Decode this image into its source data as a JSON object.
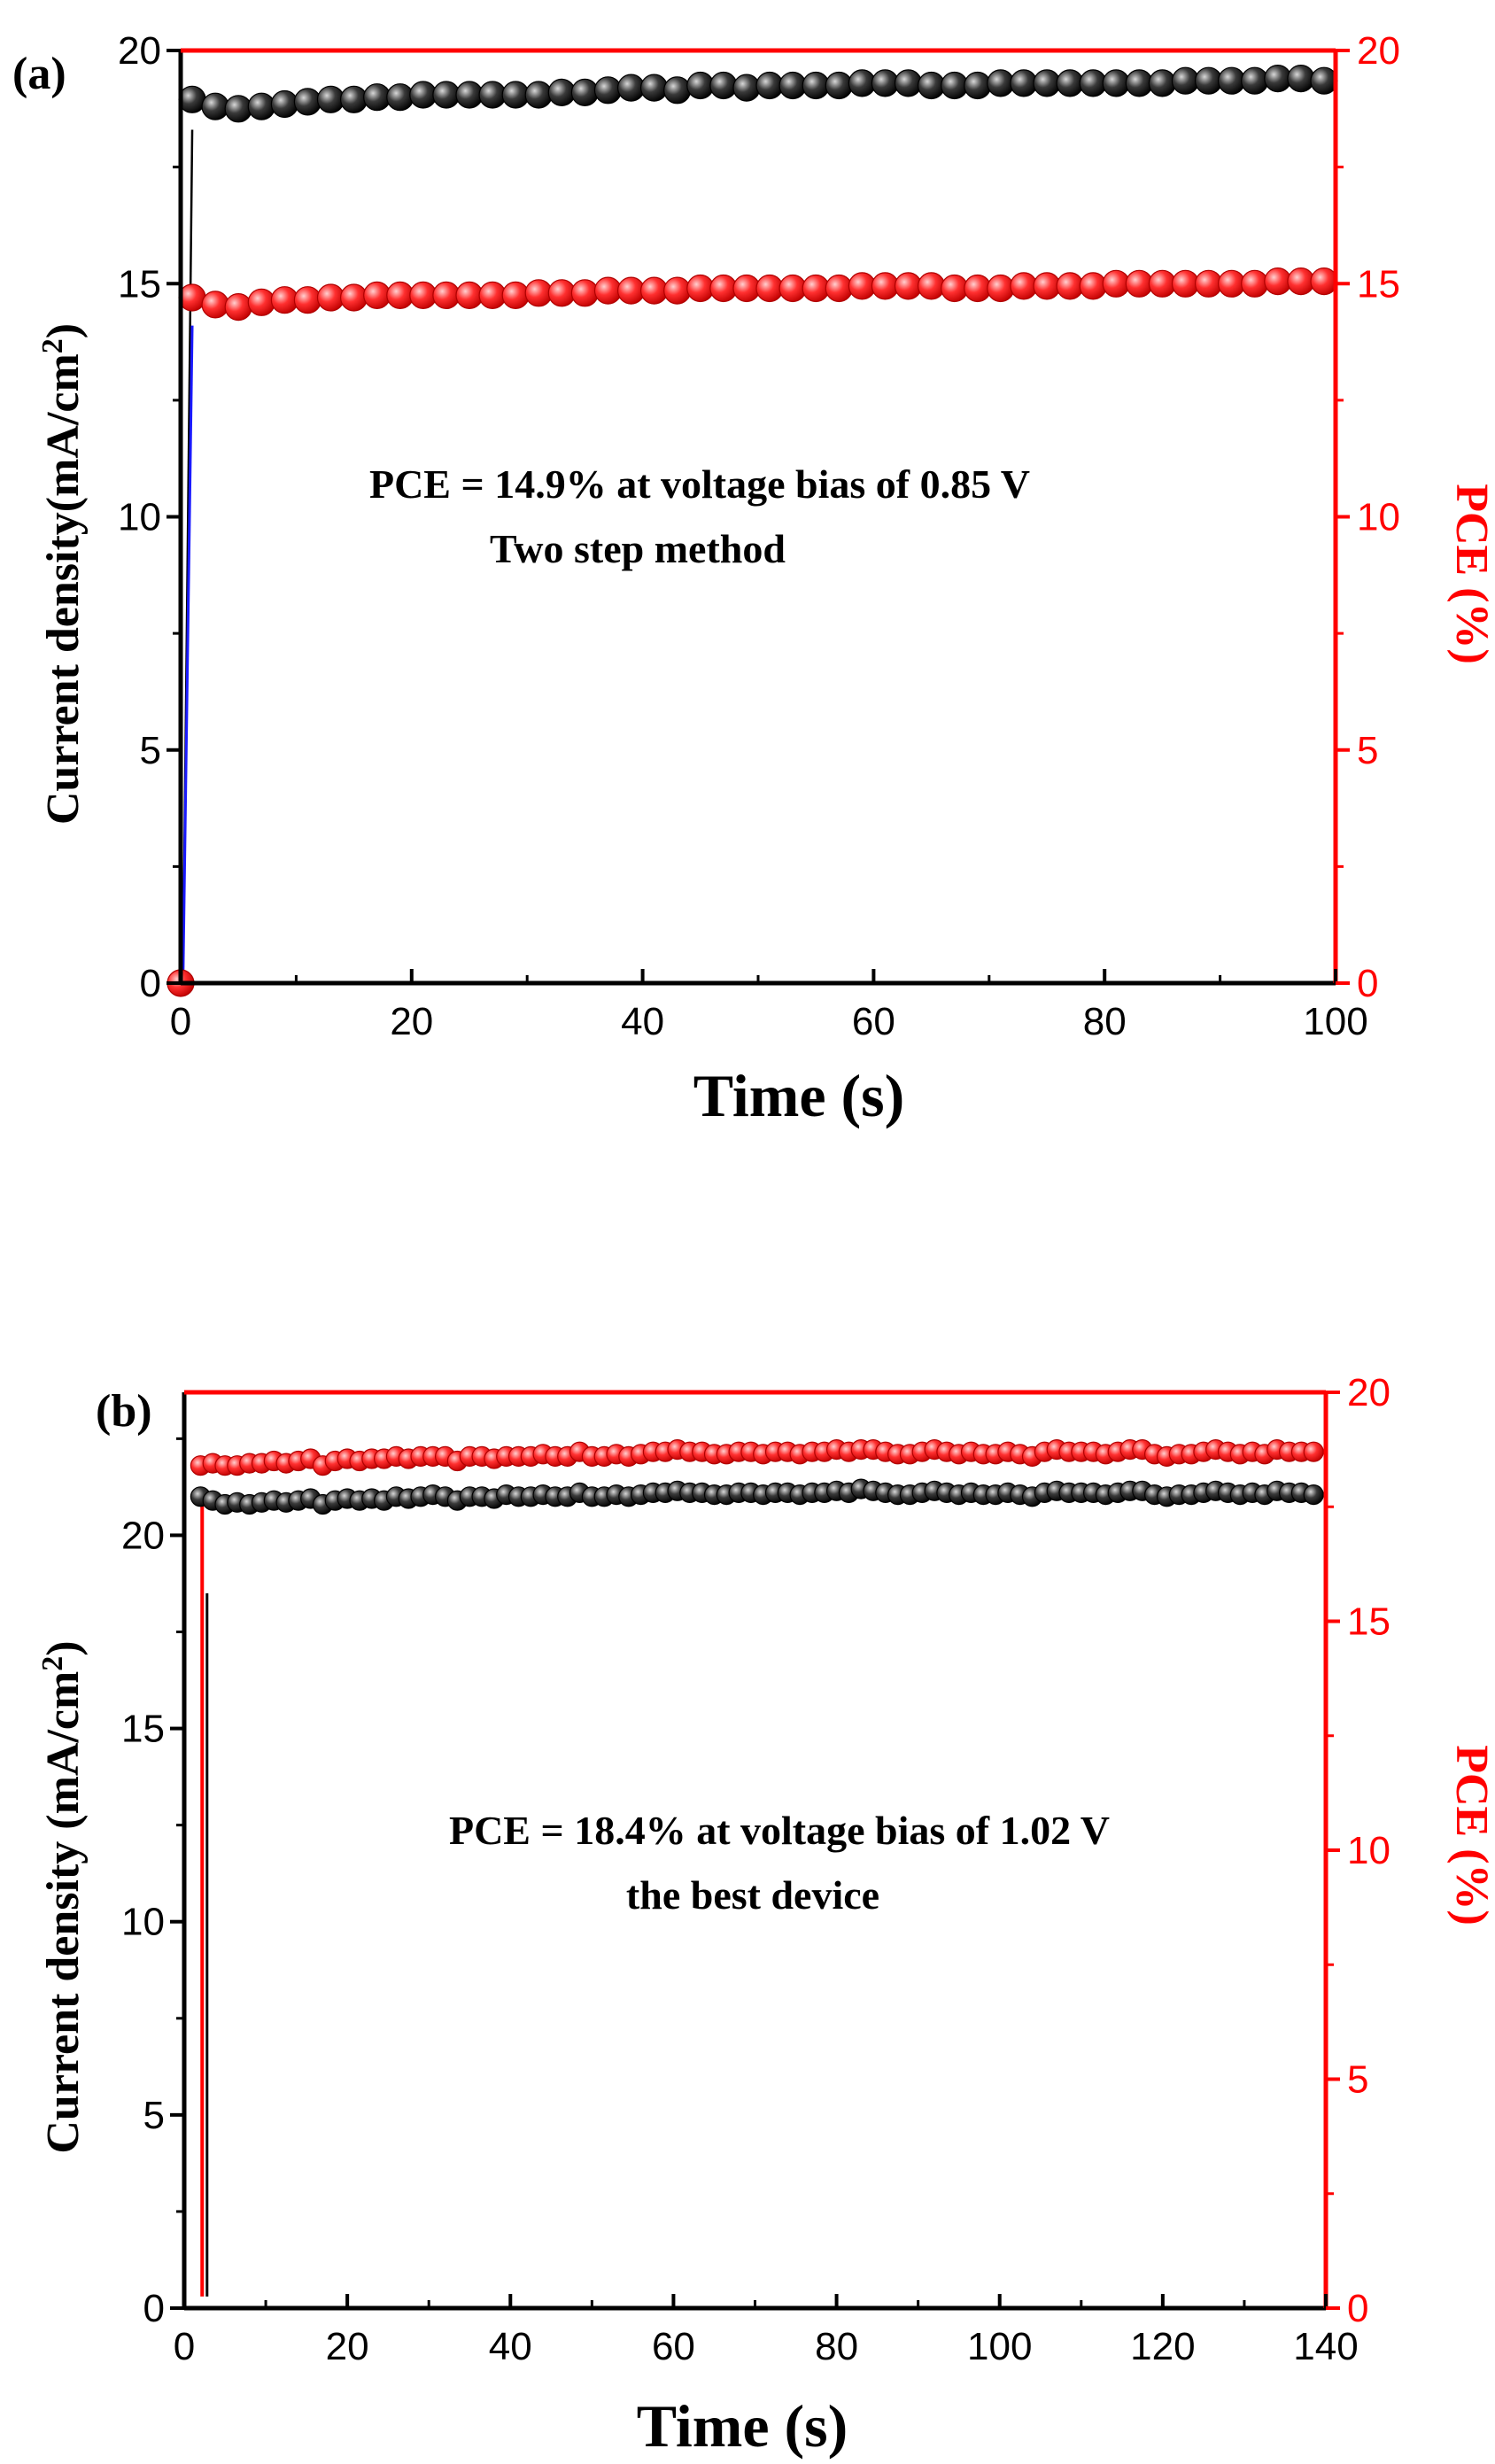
{
  "colors": {
    "current": "#000000",
    "pce": "#ff0000",
    "rise_a": "#1a1aff",
    "marker_black_fill": "#202020",
    "marker_red_fill": "#ff4040"
  },
  "chart_data": [
    {
      "type": "scatter",
      "panel_label": "(a)",
      "xlabel": "Time (s)",
      "ylabel_left": "Current density(mA/cm",
      "ylabel_left_sup": "2",
      "ylabel_left_end": ")",
      "ylabel_right": "PCE (%)",
      "xlim": [
        0,
        100
      ],
      "ylim_left": [
        0,
        20
      ],
      "ylim_right": [
        0,
        20
      ],
      "xticks": [
        "0",
        "20",
        "40",
        "60",
        "80",
        "100"
      ],
      "yticks_left": [
        "0",
        "5",
        "10",
        "15",
        "20"
      ],
      "yticks_right": [
        "0",
        "5",
        "10",
        "15",
        "20"
      ],
      "annotations": [
        "PCE = 14.9% at voltage bias of 0.85 V",
        "Two step method"
      ],
      "series": [
        {
          "axis": "left",
          "color": "#000000",
          "x": [
            1,
            3,
            5,
            7,
            9,
            11,
            13,
            15,
            17,
            19,
            21,
            23,
            25,
            27,
            29,
            31,
            33,
            35,
            37,
            39,
            41,
            43,
            45,
            47,
            49,
            51,
            53,
            55,
            57,
            59,
            61,
            63,
            65,
            67,
            69,
            71,
            73,
            75,
            77,
            79,
            81,
            83,
            85,
            87,
            89,
            91,
            93,
            95,
            97,
            99
          ],
          "y": [
            18.95,
            18.8,
            18.75,
            18.8,
            18.85,
            18.9,
            18.95,
            18.95,
            19.0,
            19.0,
            19.05,
            19.05,
            19.05,
            19.05,
            19.05,
            19.05,
            19.1,
            19.1,
            19.15,
            19.2,
            19.2,
            19.15,
            19.25,
            19.25,
            19.2,
            19.25,
            19.25,
            19.25,
            19.25,
            19.3,
            19.3,
            19.3,
            19.25,
            19.25,
            19.25,
            19.3,
            19.3,
            19.3,
            19.3,
            19.3,
            19.3,
            19.3,
            19.3,
            19.35,
            19.35,
            19.35,
            19.35,
            19.4,
            19.4,
            19.35
          ]
        },
        {
          "axis": "right",
          "color": "#ff0000",
          "x": [
            0,
            1,
            3,
            5,
            7,
            9,
            11,
            13,
            15,
            17,
            19,
            21,
            23,
            25,
            27,
            29,
            31,
            33,
            35,
            37,
            39,
            41,
            43,
            45,
            47,
            49,
            51,
            53,
            55,
            57,
            59,
            61,
            63,
            65,
            67,
            69,
            71,
            73,
            75,
            77,
            79,
            81,
            83,
            85,
            87,
            89,
            91,
            93,
            95,
            97,
            99
          ],
          "y": [
            0,
            14.7,
            14.55,
            14.5,
            14.6,
            14.65,
            14.65,
            14.7,
            14.7,
            14.75,
            14.75,
            14.75,
            14.75,
            14.75,
            14.75,
            14.75,
            14.8,
            14.8,
            14.8,
            14.85,
            14.85,
            14.85,
            14.85,
            14.9,
            14.9,
            14.9,
            14.9,
            14.9,
            14.9,
            14.9,
            14.95,
            14.95,
            14.95,
            14.95,
            14.9,
            14.9,
            14.9,
            14.95,
            14.95,
            14.95,
            14.95,
            15.0,
            15.0,
            15.0,
            15.0,
            15.0,
            15.0,
            15.0,
            15.05,
            15.05,
            15.05
          ]
        }
      ]
    },
    {
      "type": "scatter",
      "panel_label": "(b)",
      "xlabel": "Time (s)",
      "ylabel_left": "Current density (mA/cm",
      "ylabel_left_sup": "2",
      "ylabel_left_end": ")",
      "ylabel_right": "PCE (%)",
      "xlim": [
        0,
        140
      ],
      "ylim_left": [
        0,
        23.7
      ],
      "ylim_right": [
        0,
        20
      ],
      "xticks": [
        "0",
        "20",
        "40",
        "60",
        "80",
        "100",
        "120",
        "140"
      ],
      "yticks_left": [
        "0",
        "5",
        "10",
        "15",
        "20"
      ],
      "yticks_right": [
        "0",
        "5",
        "10",
        "15",
        "20"
      ],
      "annotations": [
        "PCE = 18.4% at voltage bias of 1.02 V",
        "the best device"
      ],
      "series": [
        {
          "axis": "left",
          "color": "#000000",
          "x": [
            2,
            3.5,
            5,
            6.5,
            8,
            9.5,
            11,
            12.5,
            14,
            15.5,
            17,
            18.5,
            20,
            21.5,
            23,
            24.5,
            26,
            27.5,
            29,
            30.5,
            32,
            33.5,
            35,
            36.5,
            38,
            39.5,
            41,
            42.5,
            44,
            45.5,
            47,
            48.5,
            50,
            51.5,
            53,
            54.5,
            56,
            57.5,
            59,
            60.5,
            62,
            63.5,
            65,
            66.5,
            68,
            69.5,
            71,
            72.5,
            74,
            75.5,
            77,
            78.5,
            80,
            81.5,
            83,
            84.5,
            86,
            87.5,
            89,
            90.5,
            92,
            93.5,
            95,
            96.5,
            98,
            99.5,
            101,
            102.5,
            104,
            105.5,
            107,
            108.5,
            110,
            111.5,
            113,
            114.5,
            116,
            117.5,
            119,
            120.5,
            122,
            123.5,
            125,
            126.5,
            128,
            129.5,
            131,
            132.5,
            134,
            135.5,
            137,
            138.5
          ],
          "y": [
            21.0,
            20.9,
            20.8,
            20.85,
            20.8,
            20.85,
            20.9,
            20.85,
            20.9,
            20.95,
            20.8,
            20.9,
            20.95,
            20.9,
            20.95,
            20.9,
            21.0,
            20.95,
            21.0,
            21.05,
            21.0,
            20.9,
            21.0,
            21.0,
            20.95,
            21.05,
            21.0,
            21.0,
            21.05,
            21.0,
            21.0,
            21.1,
            21.0,
            21.0,
            21.05,
            21.0,
            21.05,
            21.1,
            21.1,
            21.15,
            21.1,
            21.1,
            21.05,
            21.05,
            21.1,
            21.1,
            21.05,
            21.1,
            21.1,
            21.05,
            21.1,
            21.1,
            21.15,
            21.1,
            21.2,
            21.15,
            21.1,
            21.05,
            21.05,
            21.1,
            21.15,
            21.1,
            21.05,
            21.1,
            21.05,
            21.05,
            21.1,
            21.05,
            21.0,
            21.1,
            21.15,
            21.1,
            21.1,
            21.1,
            21.05,
            21.1,
            21.15,
            21.15,
            21.05,
            21.0,
            21.05,
            21.05,
            21.1,
            21.15,
            21.1,
            21.05,
            21.1,
            21.05,
            21.15,
            21.1,
            21.1,
            21.05
          ]
        },
        {
          "axis": "right",
          "color": "#ff0000",
          "x": [
            2,
            3.5,
            5,
            6.5,
            8,
            9.5,
            11,
            12.5,
            14,
            15.5,
            17,
            18.5,
            20,
            21.5,
            23,
            24.5,
            26,
            27.5,
            29,
            30.5,
            32,
            33.5,
            35,
            36.5,
            38,
            39.5,
            41,
            42.5,
            44,
            45.5,
            47,
            48.5,
            50,
            51.5,
            53,
            54.5,
            56,
            57.5,
            59,
            60.5,
            62,
            63.5,
            65,
            66.5,
            68,
            69.5,
            71,
            72.5,
            74,
            75.5,
            77,
            78.5,
            80,
            81.5,
            83,
            84.5,
            86,
            87.5,
            89,
            90.5,
            92,
            93.5,
            95,
            96.5,
            98,
            99.5,
            101,
            102.5,
            104,
            105.5,
            107,
            108.5,
            110,
            111.5,
            113,
            114.5,
            116,
            117.5,
            119,
            120.5,
            122,
            123.5,
            125,
            126.5,
            128,
            129.5,
            131,
            132.5,
            134,
            135.5,
            137,
            138.5
          ],
          "y": [
            18.4,
            18.45,
            18.4,
            18.4,
            18.45,
            18.45,
            18.5,
            18.45,
            18.5,
            18.55,
            18.4,
            18.5,
            18.55,
            18.5,
            18.55,
            18.55,
            18.6,
            18.55,
            18.6,
            18.6,
            18.6,
            18.5,
            18.6,
            18.6,
            18.55,
            18.6,
            18.6,
            18.6,
            18.65,
            18.6,
            18.6,
            18.7,
            18.6,
            18.6,
            18.65,
            18.6,
            18.65,
            18.7,
            18.7,
            18.75,
            18.7,
            18.7,
            18.65,
            18.65,
            18.7,
            18.7,
            18.65,
            18.7,
            18.7,
            18.65,
            18.7,
            18.7,
            18.75,
            18.7,
            18.75,
            18.75,
            18.7,
            18.65,
            18.65,
            18.7,
            18.75,
            18.7,
            18.65,
            18.7,
            18.65,
            18.65,
            18.7,
            18.65,
            18.6,
            18.7,
            18.75,
            18.7,
            18.7,
            18.7,
            18.65,
            18.7,
            18.75,
            18.75,
            18.65,
            18.6,
            18.65,
            18.65,
            18.7,
            18.75,
            18.7,
            18.65,
            18.7,
            18.65,
            18.75,
            18.7,
            18.7,
            18.7
          ]
        }
      ]
    }
  ]
}
